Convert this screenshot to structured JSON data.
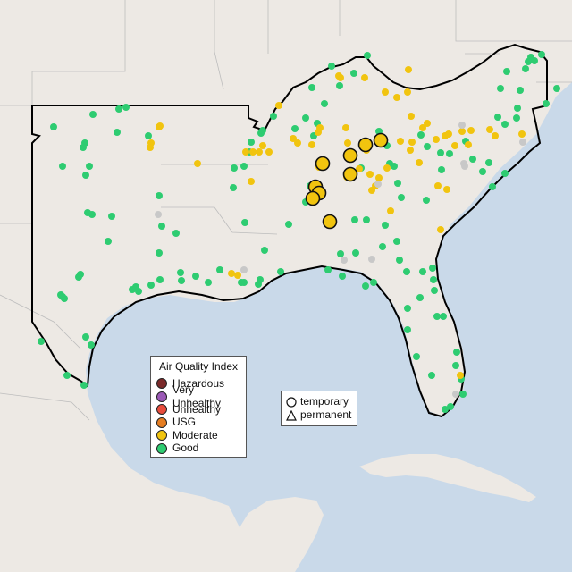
{
  "legend": {
    "title": "Air Quality Index",
    "categories": [
      {
        "label": "Hazardous",
        "color": "#7b2a2a"
      },
      {
        "label": "Very Unhealthy",
        "color": "#9b59b6"
      },
      {
        "label": "Unhealthy",
        "color": "#e74c3c"
      },
      {
        "label": "USG",
        "color": "#e67e22"
      },
      {
        "label": "Moderate",
        "color": "#f1c40f"
      },
      {
        "label": "Good",
        "color": "#2ecc71"
      }
    ]
  },
  "monitor_types": {
    "temporary": "temporary",
    "permanent": "permanent"
  },
  "colors": {
    "water": "#c9d9e9",
    "land": "#ede9e4",
    "region_outline": "#000000",
    "no_data": "#c8c8c8"
  }
}
